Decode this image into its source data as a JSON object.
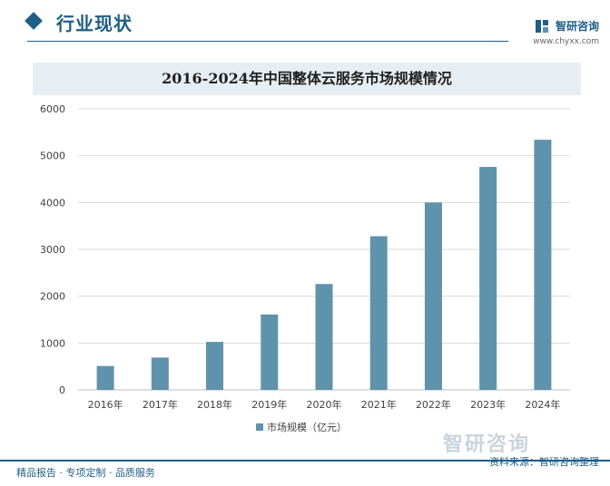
{
  "header": {
    "section_title": "行业现状",
    "brand_name": "智研咨询",
    "brand_url": "www.chyxx.com"
  },
  "chart_data": {
    "type": "bar",
    "title": "2016-2024年中国整体云服务市场规模情况",
    "categories": [
      "2016年",
      "2017年",
      "2018年",
      "2019年",
      "2020年",
      "2021年",
      "2022年",
      "2023年",
      "2024年"
    ],
    "series": [
      {
        "name": "市场规模（亿元）",
        "values": [
          510,
          690,
          1025,
          1610,
          2260,
          3280,
          4000,
          4760,
          5340
        ]
      }
    ],
    "ylim": [
      0,
      6000
    ],
    "yticks": [
      0,
      1000,
      2000,
      3000,
      4000,
      5000,
      6000
    ],
    "grid": true,
    "legend_position": "bottom",
    "bar_color": "#5f93ab"
  },
  "footer": {
    "left": "精品报告 · 专项定制 · 品质服务",
    "right": "资料来源：智研咨询整理"
  },
  "watermark": "智研咨询"
}
